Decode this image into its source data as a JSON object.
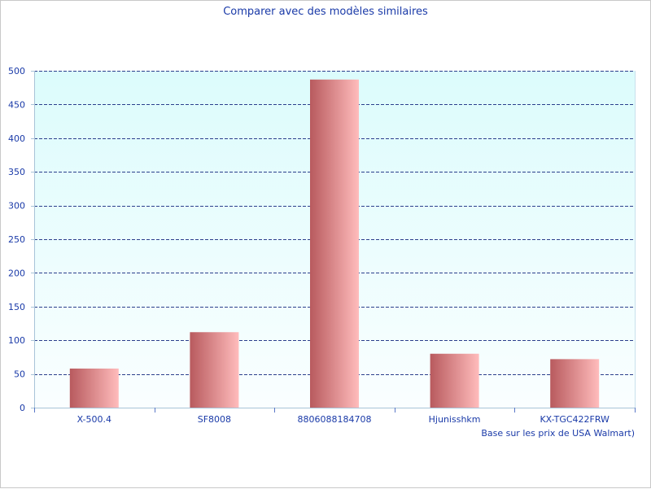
{
  "chart_data": {
    "type": "bar",
    "title": "Comparer avec des modèles similaires",
    "note": "Base sur les prix de USA Walmart)",
    "categories": [
      "X-500.4",
      "SF8008",
      "8806088184708",
      "Hjunisshkm",
      "KX-TGC422FRW"
    ],
    "values": [
      58,
      112,
      487,
      80,
      72
    ],
    "ylim": [
      0,
      500
    ],
    "yticks": [
      0,
      50,
      100,
      150,
      200,
      250,
      300,
      350,
      400,
      450,
      500
    ],
    "ytick_labels": [
      "0",
      "50",
      "100",
      "150",
      "200",
      "250",
      "300",
      "350",
      "400",
      "450",
      "500"
    ],
    "grid": true,
    "legend": "none",
    "colors": {
      "bar_dark": "#b85a5e",
      "bar_light": "#ffbcbc",
      "plot_bg_top": "#dcfcfc",
      "plot_bg_bottom": "#fafeff",
      "grid": "#2b3f8c",
      "text": "#1a3aa8"
    }
  }
}
